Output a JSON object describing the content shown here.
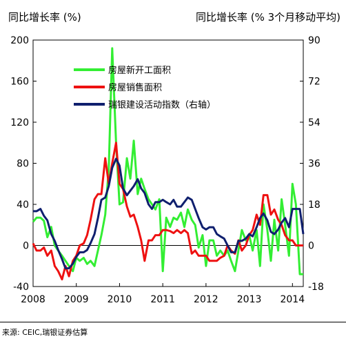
{
  "chart_data": {
    "type": "line",
    "left_axis_title": "同比增长率 (%)",
    "right_axis_title": "同比增长率 (% 3个月移动平均)",
    "source": "来源: CEIC,瑞银证券估算",
    "x_ticks": [
      "2008",
      "2009",
      "2010",
      "2011",
      "2012",
      "2013",
      "2014"
    ],
    "xlim": [
      2008,
      2014.25
    ],
    "ylim_left": [
      -40,
      200
    ],
    "yticks_left": [
      "-40",
      "0",
      "40",
      "80",
      "120",
      "160",
      "200"
    ],
    "ylim_right": [
      -18,
      90
    ],
    "yticks_right": [
      "-18",
      "0",
      "18",
      "36",
      "54",
      "72",
      "90"
    ],
    "legend_position": "upper-left",
    "series": [
      {
        "name": "房屋新开工面积",
        "axis": "left",
        "color": "#33ee33",
        "points": [
          [
            2008.0,
            23
          ],
          [
            2008.08,
            27
          ],
          [
            2008.17,
            27
          ],
          [
            2008.25,
            24
          ],
          [
            2008.33,
            8
          ],
          [
            2008.42,
            18
          ],
          [
            2008.5,
            0
          ],
          [
            2008.58,
            -5
          ],
          [
            2008.67,
            -10
          ],
          [
            2008.75,
            -15
          ],
          [
            2008.83,
            -20
          ],
          [
            2008.92,
            -25
          ],
          [
            2009.0,
            -12
          ],
          [
            2009.08,
            -15
          ],
          [
            2009.17,
            -12
          ],
          [
            2009.25,
            -18
          ],
          [
            2009.33,
            -15
          ],
          [
            2009.42,
            -20
          ],
          [
            2009.5,
            -5
          ],
          [
            2009.58,
            10
          ],
          [
            2009.67,
            30
          ],
          [
            2009.75,
            75
          ],
          [
            2009.83,
            192
          ],
          [
            2009.92,
            100
          ],
          [
            2010.0,
            40
          ],
          [
            2010.08,
            42
          ],
          [
            2010.17,
            85
          ],
          [
            2010.25,
            65
          ],
          [
            2010.33,
            102
          ],
          [
            2010.42,
            50
          ],
          [
            2010.5,
            65
          ],
          [
            2010.58,
            55
          ],
          [
            2010.67,
            45
          ],
          [
            2010.75,
            40
          ],
          [
            2010.83,
            35
          ],
          [
            2010.92,
            45
          ],
          [
            2011.0,
            -25
          ],
          [
            2011.08,
            27
          ],
          [
            2011.17,
            18
          ],
          [
            2011.25,
            27
          ],
          [
            2011.33,
            25
          ],
          [
            2011.42,
            32
          ],
          [
            2011.5,
            18
          ],
          [
            2011.58,
            35
          ],
          [
            2011.67,
            25
          ],
          [
            2011.75,
            20
          ],
          [
            2011.83,
            -2
          ],
          [
            2011.92,
            10
          ],
          [
            2012.0,
            -20
          ],
          [
            2012.08,
            5
          ],
          [
            2012.17,
            5
          ],
          [
            2012.25,
            -10
          ],
          [
            2012.33,
            -5
          ],
          [
            2012.42,
            -10
          ],
          [
            2012.5,
            -5
          ],
          [
            2012.58,
            -15
          ],
          [
            2012.67,
            -25
          ],
          [
            2012.75,
            -5
          ],
          [
            2012.83,
            15
          ],
          [
            2012.92,
            5
          ],
          [
            2013.0,
            10
          ],
          [
            2013.08,
            -5
          ],
          [
            2013.17,
            15
          ],
          [
            2013.25,
            -20
          ],
          [
            2013.33,
            40
          ],
          [
            2013.42,
            15
          ],
          [
            2013.5,
            -15
          ],
          [
            2013.58,
            25
          ],
          [
            2013.67,
            -5
          ],
          [
            2013.75,
            45
          ],
          [
            2013.83,
            20
          ],
          [
            2013.92,
            -10
          ],
          [
            2014.0,
            60
          ],
          [
            2014.08,
            40
          ],
          [
            2014.17,
            -28
          ],
          [
            2014.25,
            -28
          ]
        ]
      },
      {
        "name": "房屋销售面积",
        "axis": "left",
        "color": "#ee1111",
        "points": [
          [
            2008.0,
            2
          ],
          [
            2008.08,
            -5
          ],
          [
            2008.17,
            -5
          ],
          [
            2008.25,
            -2
          ],
          [
            2008.33,
            -10
          ],
          [
            2008.42,
            -5
          ],
          [
            2008.5,
            -20
          ],
          [
            2008.58,
            -25
          ],
          [
            2008.67,
            -33
          ],
          [
            2008.75,
            -20
          ],
          [
            2008.83,
            -30
          ],
          [
            2008.92,
            -15
          ],
          [
            2009.0,
            -10
          ],
          [
            2009.08,
            0
          ],
          [
            2009.17,
            2
          ],
          [
            2009.25,
            10
          ],
          [
            2009.33,
            25
          ],
          [
            2009.42,
            45
          ],
          [
            2009.5,
            50
          ],
          [
            2009.58,
            50
          ],
          [
            2009.67,
            85
          ],
          [
            2009.75,
            60
          ],
          [
            2009.83,
            80
          ],
          [
            2009.92,
            100
          ],
          [
            2010.0,
            60
          ],
          [
            2010.08,
            55
          ],
          [
            2010.17,
            38
          ],
          [
            2010.25,
            28
          ],
          [
            2010.33,
            30
          ],
          [
            2010.42,
            18
          ],
          [
            2010.5,
            5
          ],
          [
            2010.58,
            -15
          ],
          [
            2010.67,
            5
          ],
          [
            2010.75,
            5
          ],
          [
            2010.83,
            10
          ],
          [
            2010.92,
            10
          ],
          [
            2011.0,
            15
          ],
          [
            2011.08,
            15
          ],
          [
            2011.17,
            14
          ],
          [
            2011.25,
            12
          ],
          [
            2011.33,
            15
          ],
          [
            2011.42,
            12
          ],
          [
            2011.5,
            15
          ],
          [
            2011.58,
            12
          ],
          [
            2011.67,
            -8
          ],
          [
            2011.75,
            -5
          ],
          [
            2011.83,
            -10
          ],
          [
            2011.92,
            -10
          ],
          [
            2012.0,
            -10
          ],
          [
            2012.08,
            -15
          ],
          [
            2012.17,
            -15
          ],
          [
            2012.25,
            -15
          ],
          [
            2012.33,
            -12
          ],
          [
            2012.42,
            -10
          ],
          [
            2012.5,
            0
          ],
          [
            2012.58,
            -5
          ],
          [
            2012.67,
            -8
          ],
          [
            2012.75,
            5
          ],
          [
            2012.83,
            -5
          ],
          [
            2012.92,
            0
          ],
          [
            2013.0,
            10
          ],
          [
            2013.08,
            15
          ],
          [
            2013.17,
            30
          ],
          [
            2013.25,
            20
          ],
          [
            2013.33,
            49
          ],
          [
            2013.42,
            49
          ],
          [
            2013.5,
            30
          ],
          [
            2013.58,
            35
          ],
          [
            2013.67,
            25
          ],
          [
            2013.75,
            20
          ],
          [
            2013.83,
            10
          ],
          [
            2013.92,
            5
          ],
          [
            2014.0,
            5
          ],
          [
            2014.08,
            0
          ],
          [
            2014.17,
            0
          ],
          [
            2014.25,
            0
          ]
        ]
      },
      {
        "name": "瑞银建设活动指数（右轴）",
        "axis": "right",
        "color": "#0f1f6e",
        "points": [
          [
            2008.0,
            15
          ],
          [
            2008.08,
            15
          ],
          [
            2008.17,
            16
          ],
          [
            2008.25,
            13
          ],
          [
            2008.33,
            11
          ],
          [
            2008.42,
            5
          ],
          [
            2008.5,
            2
          ],
          [
            2008.58,
            -2
          ],
          [
            2008.67,
            -6
          ],
          [
            2008.75,
            -10
          ],
          [
            2008.83,
            -10
          ],
          [
            2008.92,
            -8
          ],
          [
            2009.0,
            -5
          ],
          [
            2009.08,
            -3
          ],
          [
            2009.17,
            -3
          ],
          [
            2009.25,
            -2
          ],
          [
            2009.33,
            1
          ],
          [
            2009.42,
            5
          ],
          [
            2009.5,
            12
          ],
          [
            2009.58,
            20
          ],
          [
            2009.67,
            21
          ],
          [
            2009.75,
            26
          ],
          [
            2009.83,
            34
          ],
          [
            2009.92,
            38
          ],
          [
            2010.0,
            35
          ],
          [
            2010.08,
            25
          ],
          [
            2010.17,
            22
          ],
          [
            2010.25,
            24
          ],
          [
            2010.33,
            26
          ],
          [
            2010.42,
            29
          ],
          [
            2010.5,
            25
          ],
          [
            2010.58,
            23
          ],
          [
            2010.67,
            18
          ],
          [
            2010.75,
            16
          ],
          [
            2010.83,
            19
          ],
          [
            2010.92,
            19
          ],
          [
            2011.0,
            20
          ],
          [
            2011.08,
            19
          ],
          [
            2011.17,
            18
          ],
          [
            2011.25,
            20
          ],
          [
            2011.33,
            17
          ],
          [
            2011.42,
            17
          ],
          [
            2011.5,
            19
          ],
          [
            2011.58,
            21
          ],
          [
            2011.67,
            20
          ],
          [
            2011.75,
            16
          ],
          [
            2011.83,
            12
          ],
          [
            2011.92,
            8
          ],
          [
            2012.0,
            7
          ],
          [
            2012.08,
            8
          ],
          [
            2012.17,
            8
          ],
          [
            2012.25,
            5
          ],
          [
            2012.33,
            4
          ],
          [
            2012.42,
            3
          ],
          [
            2012.5,
            0
          ],
          [
            2012.58,
            -3
          ],
          [
            2012.67,
            -3
          ],
          [
            2012.75,
            2
          ],
          [
            2012.83,
            2
          ],
          [
            2012.92,
            3
          ],
          [
            2013.0,
            5
          ],
          [
            2013.08,
            4
          ],
          [
            2013.17,
            8
          ],
          [
            2013.25,
            12
          ],
          [
            2013.33,
            14
          ],
          [
            2013.42,
            11
          ],
          [
            2013.5,
            6
          ],
          [
            2013.58,
            5
          ],
          [
            2013.67,
            7
          ],
          [
            2013.75,
            10
          ],
          [
            2013.83,
            12
          ],
          [
            2013.92,
            8
          ],
          [
            2014.0,
            16
          ],
          [
            2014.08,
            16
          ],
          [
            2014.17,
            16
          ],
          [
            2014.25,
            5
          ]
        ]
      }
    ]
  }
}
